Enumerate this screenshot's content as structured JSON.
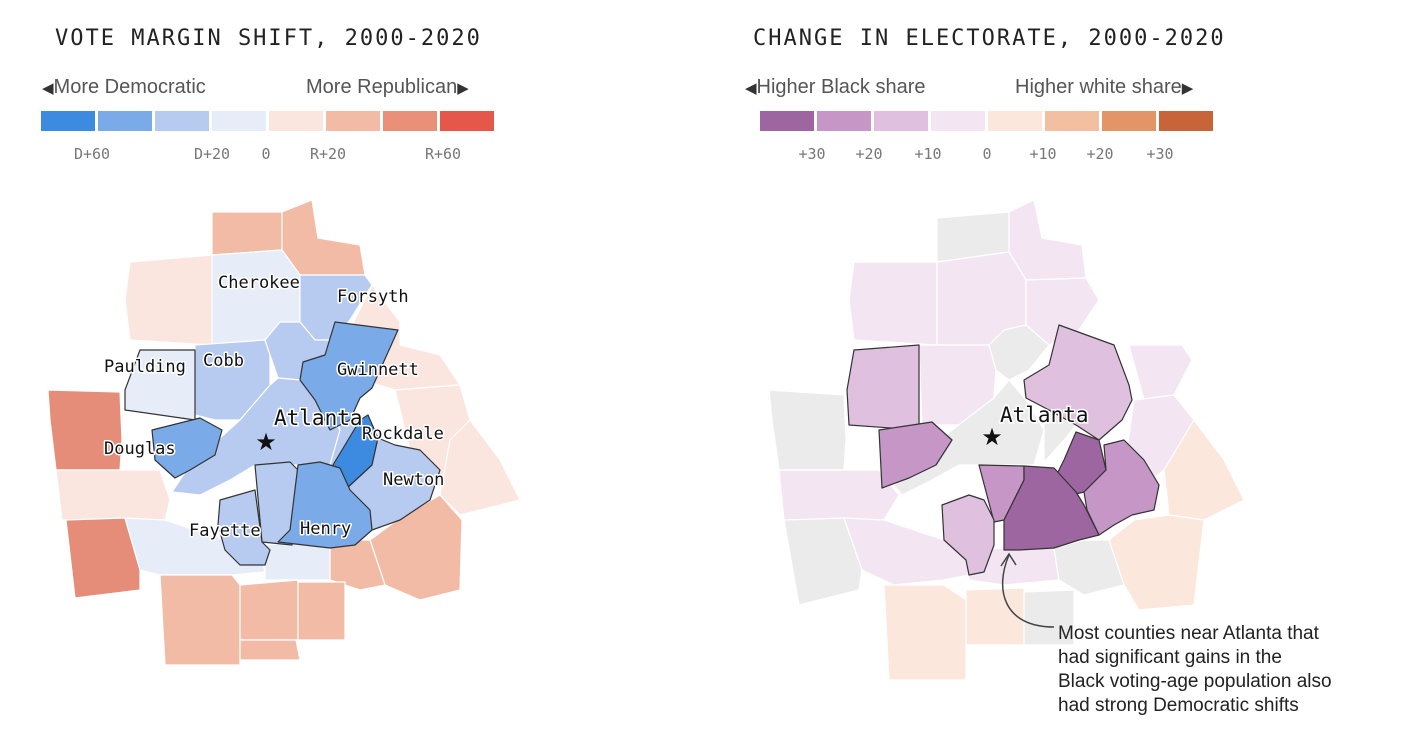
{
  "left": {
    "title": "VOTE MARGIN SHIFT, 2000-2020",
    "dir_left": "More Democratic",
    "dir_right": "More Republican",
    "legend_colors": [
      "#3d8be0",
      "#7aaae8",
      "#b7caf0",
      "#e6ecf8",
      "#fbe5df",
      "#f2bba6",
      "#ea8f78",
      "#e5574a"
    ],
    "ticks": [
      "D+60",
      "D+20",
      "0",
      "R+20",
      "R+60"
    ],
    "counties": {
      "cherokee": "Cherokee",
      "forsyth": "Forsyth",
      "paulding": "Paulding",
      "cobb": "Cobb",
      "gwinnett": "Gwinnett",
      "douglas": "Douglas",
      "rockdale": "Rockdale",
      "newton": "Newton",
      "fayette": "Fayette",
      "henry": "Henry"
    },
    "city": "Atlanta"
  },
  "right": {
    "title": "CHANGE IN ELECTORATE, 2000-2020",
    "dir_left": "Higher Black share",
    "dir_right": "Higher white share",
    "legend_colors": [
      "#9e66a0",
      "#c596c6",
      "#dfc1df",
      "#f3e6f2",
      "#fbe7dc",
      "#f2c0a1",
      "#e39568",
      "#c7643a"
    ],
    "ticks": [
      "+30",
      "+20",
      "+10",
      "0",
      "+10",
      "+20",
      "+30"
    ],
    "city": "Atlanta",
    "annotation": [
      "Most counties near Atlanta that",
      "had significant gains in the",
      "Black voting-age population also",
      "had strong Democratic shifts"
    ]
  }
}
